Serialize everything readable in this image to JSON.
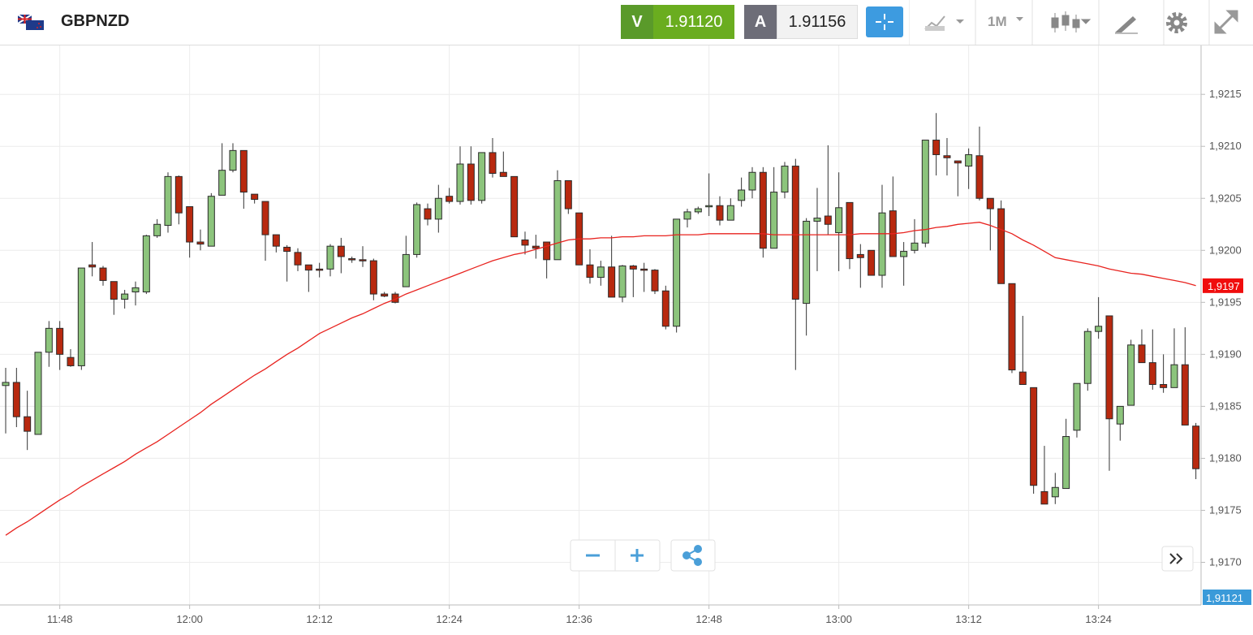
{
  "header": {
    "symbol": "GBPNZD",
    "sell": {
      "label": "V",
      "price": "1.91120"
    },
    "buy": {
      "label": "A",
      "price": "1.91156"
    },
    "timeframe": "1M"
  },
  "chart_data": {
    "type": "candlestick",
    "categories": [
      null,
      null,
      null,
      null,
      null,
      "11:48",
      null,
      null,
      null,
      null,
      null,
      null,
      null,
      null,
      null,
      null,
      null,
      "12:00",
      null,
      null,
      null,
      null,
      null,
      null,
      null,
      null,
      null,
      null,
      null,
      "12:12",
      null,
      null,
      null,
      null,
      null,
      null,
      null,
      null,
      null,
      null,
      null,
      "12:24",
      null,
      null,
      null,
      null,
      null,
      null,
      null,
      null,
      null,
      null,
      null,
      "12:36",
      null,
      null,
      null,
      null,
      null,
      null,
      null,
      null,
      null,
      null,
      null,
      "12:48",
      null,
      null,
      null,
      null,
      null,
      null,
      null,
      null,
      null,
      null,
      null,
      "13:00",
      null,
      null,
      null,
      null,
      null,
      null,
      null,
      null,
      null,
      null,
      null,
      "13:12",
      null,
      null,
      null,
      null,
      null,
      null,
      null,
      null,
      null,
      null,
      null,
      "13:24",
      null,
      null,
      null,
      null,
      null,
      null,
      null,
      null,
      null
    ],
    "open": [
      1.9187,
      1.91873,
      1.9184,
      1.91823,
      1.91902,
      1.91925,
      1.91897,
      1.91889,
      1.91986,
      1.91983,
      1.9197,
      1.91953,
      1.9196,
      1.9196,
      1.92014,
      1.92024,
      1.92071,
      1.92042,
      1.92008,
      1.92004,
      1.92053,
      1.92077,
      1.92096,
      1.92054,
      1.92047,
      1.92015,
      1.92003,
      1.91998,
      1.91986,
      1.91982,
      1.91982,
      1.92004,
      1.91992,
      1.91991,
      1.9199,
      1.91958,
      1.91958,
      1.91965,
      1.91996,
      1.9204,
      1.9203,
      1.92052,
      1.92047,
      1.92083,
      1.92048,
      1.92094,
      1.92075,
      1.92071,
      1.9201,
      1.92004,
      1.92008,
      1.91991,
      1.92067,
      1.92036,
      1.91986,
      1.91974,
      1.91984,
      1.91955,
      1.91985,
      1.91982,
      1.91981,
      1.91961,
      1.91927,
      1.9203,
      1.92037,
      1.92042,
      1.92043,
      1.92029,
      1.92048,
      1.92058,
      1.92075,
      1.92002,
      1.92056,
      1.92081,
      1.91949,
      1.92028,
      1.92033,
      1.92017,
      1.92046,
      1.91996,
      1.92,
      1.91976,
      1.92038,
      1.91994,
      1.92,
      1.92007,
      1.92106,
      1.92091,
      1.92086,
      1.92081,
      1.92091,
      1.9205,
      1.9204,
      1.91968,
      1.91883,
      1.91868,
      1.91768,
      1.91763,
      1.91771,
      1.91827,
      1.91872,
      1.91922,
      1.91937,
      1.91833,
      1.91851,
      1.91909,
      1.91892,
      1.91871,
      1.91868,
      1.9189,
      1.91831
    ],
    "high": [
      1.91887,
      1.91887,
      1.91865,
      1.91902,
      1.91932,
      1.91932,
      1.91905,
      1.91983,
      1.92008,
      1.91985,
      1.9197,
      1.91962,
      1.9197,
      1.92015,
      1.9203,
      1.92075,
      1.92072,
      1.92042,
      1.9202,
      1.92055,
      1.92103,
      1.92103,
      1.92096,
      1.92054,
      1.92047,
      1.92015,
      1.92005,
      1.92002,
      1.91986,
      1.91988,
      1.92006,
      1.92012,
      1.91994,
      1.92004,
      1.91992,
      1.9196,
      1.9196,
      1.92014,
      1.92046,
      1.92045,
      1.92063,
      1.9206,
      1.921,
      1.921,
      1.92094,
      1.92108,
      1.92095,
      1.92071,
      1.92018,
      1.92015,
      1.92008,
      1.92077,
      1.92067,
      1.92036,
      1.92001,
      1.9199,
      1.92014,
      1.91986,
      1.91986,
      1.91988,
      1.91982,
      1.91966,
      1.9203,
      1.9204,
      1.92042,
      1.92074,
      1.92052,
      1.9205,
      1.9207,
      1.9208,
      1.9208,
      1.9208,
      1.92085,
      1.92088,
      1.92031,
      1.9206,
      1.92101,
      1.92075,
      1.92046,
      1.92006,
      1.92,
      1.92063,
      1.92071,
      1.92008,
      1.9203,
      1.92106,
      1.92132,
      1.92108,
      1.92086,
      1.92098,
      1.92119,
      1.9205,
      1.92048,
      1.91968,
      1.91937,
      1.91868,
      1.91812,
      1.91786,
      1.91838,
      1.91872,
      1.91925,
      1.91955,
      1.91937,
      1.9185,
      1.91914,
      1.91924,
      1.91924,
      1.919,
      1.91925,
      1.91926,
      1.91834
    ],
    "low": [
      1.91824,
      1.9183,
      1.91808,
      1.91823,
      1.91888,
      1.91885,
      1.91888,
      1.91885,
      1.91975,
      1.91966,
      1.91938,
      1.91944,
      1.91947,
      1.91958,
      1.92012,
      1.92017,
      1.92025,
      1.91993,
      1.92,
      1.92004,
      1.92053,
      1.92075,
      1.9204,
      1.92045,
      1.9199,
      1.91998,
      1.9197,
      1.9198,
      1.9196,
      1.91974,
      1.91975,
      1.91978,
      1.91988,
      1.91984,
      1.91952,
      1.91955,
      1.91949,
      1.91965,
      1.91993,
      1.92024,
      1.92017,
      1.92045,
      1.92044,
      1.92044,
      1.92045,
      1.9207,
      1.92071,
      1.92013,
      1.91996,
      1.91992,
      1.91973,
      1.91991,
      1.92035,
      1.91986,
      1.91968,
      1.91966,
      1.91955,
      1.9195,
      1.91955,
      1.9196,
      1.91958,
      1.91924,
      1.91921,
      1.92022,
      1.92035,
      1.92033,
      1.92024,
      1.92029,
      1.92042,
      1.9205,
      1.91993,
      1.92002,
      1.9205,
      1.91885,
      1.91918,
      1.9198,
      1.92015,
      1.9198,
      1.91982,
      1.91964,
      1.91976,
      1.91964,
      1.91994,
      1.91966,
      1.91997,
      1.92003,
      1.92072,
      1.92072,
      1.92052,
      1.92059,
      1.92048,
      1.92,
      1.91968,
      1.91882,
      1.91871,
      1.91766,
      1.91756,
      1.91756,
      1.91771,
      1.9182,
      1.91865,
      1.91915,
      1.91788,
      1.91817,
      1.91851,
      1.91892,
      1.91866,
      1.91863,
      1.91868,
      1.91832,
      1.9178
    ],
    "close": [
      1.91873,
      1.9184,
      1.91826,
      1.91902,
      1.91925,
      1.919,
      1.91889,
      1.91983,
      1.91984,
      1.91971,
      1.91953,
      1.91958,
      1.91964,
      1.92014,
      1.92025,
      1.92071,
      1.92036,
      1.92008,
      1.92006,
      1.92052,
      1.92077,
      1.92096,
      1.92056,
      1.92049,
      1.92015,
      1.92004,
      1.91999,
      1.91986,
      1.91981,
      1.91981,
      1.92004,
      1.91994,
      1.91991,
      1.9199,
      1.91958,
      1.91956,
      1.9195,
      1.91996,
      1.92044,
      1.9203,
      1.9205,
      1.92047,
      1.92083,
      1.92048,
      1.92094,
      1.92074,
      1.92071,
      1.92013,
      1.92005,
      1.92002,
      1.91991,
      1.92067,
      1.9204,
      1.91986,
      1.91974,
      1.91984,
      1.91955,
      1.91985,
      1.91982,
      1.91981,
      1.91961,
      1.91927,
      1.9203,
      1.92037,
      1.9204,
      1.92043,
      1.92029,
      1.92043,
      1.92058,
      1.92075,
      1.92002,
      1.92056,
      1.92081,
      1.91953,
      1.92028,
      1.92031,
      1.92025,
      1.92041,
      1.91992,
      1.91993,
      1.91976,
      1.92036,
      1.91994,
      1.91999,
      1.92007,
      1.92106,
      1.92092,
      1.92089,
      1.92084,
      1.92092,
      1.9205,
      1.9204,
      1.91968,
      1.91885,
      1.91871,
      1.91774,
      1.91756,
      1.91772,
      1.91821,
      1.91872,
      1.91922,
      1.91927,
      1.91838,
      1.9185,
      1.91909,
      1.91892,
      1.91871,
      1.91868,
      1.9189,
      1.91832,
      1.9179
    ],
    "up_color": "#8cc47c",
    "down_color": "#b8290f",
    "moving_average": {
      "color": "#e8231f",
      "values": [
        1.91726,
        1.91733,
        1.91739,
        1.91746,
        1.91753,
        1.9176,
        1.91766,
        1.91773,
        1.91779,
        1.91785,
        1.91791,
        1.91797,
        1.91804,
        1.9181,
        1.91816,
        1.91823,
        1.9183,
        1.91837,
        1.91844,
        1.91852,
        1.91859,
        1.91866,
        1.91873,
        1.9188,
        1.91886,
        1.91893,
        1.919,
        1.91906,
        1.91913,
        1.9192,
        1.91925,
        1.9193,
        1.91935,
        1.91939,
        1.91944,
        1.91949,
        1.91953,
        1.91958,
        1.91962,
        1.91966,
        1.9197,
        1.91974,
        1.91978,
        1.91982,
        1.91986,
        1.9199,
        1.91993,
        1.91996,
        1.91998,
        1.92001,
        1.92004,
        1.92007,
        1.9201,
        1.92011,
        1.92011,
        1.92012,
        1.92012,
        1.92013,
        1.92013,
        1.92014,
        1.92014,
        1.92014,
        1.92015,
        1.92015,
        1.92015,
        1.92016,
        1.92016,
        1.92016,
        1.92016,
        1.92016,
        1.92016,
        1.92015,
        1.92015,
        1.92015,
        1.92015,
        1.92015,
        1.92015,
        1.92015,
        1.92015,
        1.92016,
        1.92016,
        1.92016,
        1.92016,
        1.92017,
        1.92019,
        1.9202,
        1.92022,
        1.92023,
        1.92025,
        1.92026,
        1.92027,
        1.92024,
        1.9202,
        1.92016,
        1.9201,
        1.92005,
        1.91999,
        1.91993,
        1.91991,
        1.91989,
        1.91987,
        1.91985,
        1.91982,
        1.9198,
        1.91978,
        1.91977,
        1.91975,
        1.91973,
        1.91971,
        1.91969,
        1.91966
      ],
      "last_label": "1,9197"
    },
    "bid_label": "1,91121",
    "ylim": [
      1.91659,
      1.92197
    ],
    "yticks": [
      {
        "value": 1.917,
        "label": "1,9170"
      },
      {
        "value": 1.9175,
        "label": "1,9175"
      },
      {
        "value": 1.918,
        "label": "1,9180"
      },
      {
        "value": 1.9185,
        "label": "1,9185"
      },
      {
        "value": 1.919,
        "label": "1,9190"
      },
      {
        "value": 1.9195,
        "label": "1,9195"
      },
      {
        "value": 1.92,
        "label": "1,9200"
      },
      {
        "value": 1.9205,
        "label": "1,9205"
      },
      {
        "value": 1.921,
        "label": "1,9210"
      },
      {
        "value": 1.9215,
        "label": "1,9215"
      }
    ],
    "grid": true
  }
}
